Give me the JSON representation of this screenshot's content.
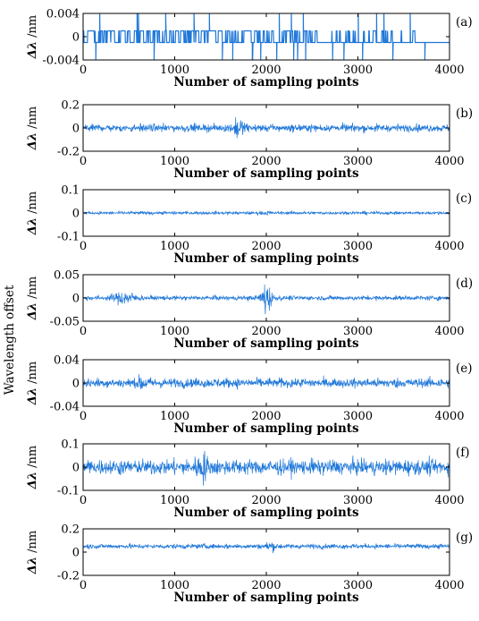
{
  "figure": {
    "y_title": "Wavelength offset"
  },
  "chart_data": [
    {
      "type": "line",
      "panel_label": "(a)",
      "ylabel_symbol": "Δλ",
      "ylabel_unit": " /nm",
      "xlabel": "Number of sampling points",
      "xlim": [
        0,
        4000
      ],
      "ylim": [
        -0.004,
        0.004
      ],
      "xticks": [
        0,
        1000,
        2000,
        3000,
        4000
      ],
      "yticks": [
        -0.004,
        0,
        0.004
      ],
      "xtick_labels": [
        "0",
        "1000",
        "2000",
        "3000",
        "4000"
      ],
      "ytick_labels": [
        "-0.004",
        "0",
        "0.004"
      ],
      "series": [
        {
          "color": "#1f77d8",
          "pattern": "binary",
          "levels": [
            0.001,
            -0.001
          ],
          "approx_amplitude": 0.004
        }
      ]
    },
    {
      "type": "line",
      "panel_label": "(b)",
      "ylabel_symbol": "Δλ",
      "ylabel_unit": " /nm",
      "xlabel": "Number of sampling points",
      "xlim": [
        0,
        4000
      ],
      "ylim": [
        -0.2,
        0.2
      ],
      "xticks": [
        0,
        1000,
        2000,
        3000,
        4000
      ],
      "yticks": [
        -0.2,
        0,
        0.2
      ],
      "xtick_labels": [
        "0",
        "1000",
        "2000",
        "3000",
        "4000"
      ],
      "ytick_labels": [
        "-0.2",
        "0",
        "0.2"
      ],
      "series": [
        {
          "color": "#1f77d8",
          "pattern": "noise",
          "approx_amplitude": 0.04,
          "burst_center": 1700,
          "burst_amplitude": 0.12
        }
      ]
    },
    {
      "type": "line",
      "panel_label": "(c)",
      "ylabel_symbol": "Δλ",
      "ylabel_unit": " /nm",
      "xlabel": "Number of sampling points",
      "xlim": [
        0,
        4000
      ],
      "ylim": [
        -0.1,
        0.1
      ],
      "xticks": [
        0,
        1000,
        2000,
        3000,
        4000
      ],
      "yticks": [
        -0.1,
        0,
        0.1
      ],
      "xtick_labels": [
        "0",
        "1000",
        "2000",
        "3000",
        "4000"
      ],
      "ytick_labels": [
        "-0.1",
        "0",
        "0.1"
      ],
      "series": [
        {
          "color": "#1f77d8",
          "pattern": "noise",
          "approx_amplitude": 0.008,
          "burst_center": 2000,
          "burst_amplitude": 0.012
        }
      ]
    },
    {
      "type": "line",
      "panel_label": "(d)",
      "ylabel_symbol": "Δλ",
      "ylabel_unit": " /nm",
      "xlabel": "Number of sampling points",
      "xlim": [
        0,
        4000
      ],
      "ylim": [
        -0.05,
        0.05
      ],
      "xticks": [
        0,
        1000,
        2000,
        3000,
        4000
      ],
      "yticks": [
        -0.05,
        0,
        0.05
      ],
      "xtick_labels": [
        "0",
        "1000",
        "2000",
        "3000",
        "4000"
      ],
      "ytick_labels": [
        "-0.05",
        "0",
        "0.05"
      ],
      "series": [
        {
          "color": "#1f77d8",
          "pattern": "noise",
          "approx_amplitude": 0.006,
          "burst_center": 2000,
          "burst_amplitude": 0.045,
          "burst2_center": 450,
          "burst2_amplitude": 0.02
        }
      ]
    },
    {
      "type": "line",
      "panel_label": "(e)",
      "ylabel_symbol": "Δλ",
      "ylabel_unit": " /nm",
      "xlabel": "Number of sampling points",
      "xlim": [
        0,
        4000
      ],
      "ylim": [
        -0.04,
        0.04
      ],
      "xticks": [
        0,
        1000,
        2000,
        3000,
        4000
      ],
      "yticks": [
        -0.04,
        0,
        0.04
      ],
      "xtick_labels": [
        "0",
        "1000",
        "2000",
        "3000",
        "4000"
      ],
      "ytick_labels": [
        "-0.04",
        "0",
        "0.04"
      ],
      "series": [
        {
          "color": "#1f77d8",
          "pattern": "noise",
          "approx_amplitude": 0.01,
          "burst_center": 650,
          "burst_amplitude": 0.018
        }
      ]
    },
    {
      "type": "line",
      "panel_label": "(f)",
      "ylabel_symbol": "Δλ",
      "ylabel_unit": " /nm",
      "xlabel": "Number of sampling points",
      "xlim": [
        0,
        4000
      ],
      "ylim": [
        -0.1,
        0.1
      ],
      "xticks": [
        0,
        1000,
        2000,
        3000,
        4000
      ],
      "yticks": [
        -0.1,
        0,
        0.1
      ],
      "xtick_labels": [
        "0",
        "1000",
        "2000",
        "3000",
        "4000"
      ],
      "ytick_labels": [
        "-0.1",
        "0",
        "0.1"
      ],
      "series": [
        {
          "color": "#1f77d8",
          "pattern": "noise",
          "approx_amplitude": 0.04,
          "burst_center": 1300,
          "burst_amplitude": 0.09
        }
      ]
    },
    {
      "type": "line",
      "panel_label": "(g)",
      "ylabel_symbol": "Δλ",
      "ylabel_unit": " /nm",
      "xlabel": "Number of sampling points",
      "xlim": [
        0,
        4000
      ],
      "ylim": [
        -0.2,
        0.2
      ],
      "xticks": [
        0,
        1000,
        2000,
        3000,
        4000
      ],
      "yticks": [
        -0.2,
        0,
        0.2
      ],
      "xtick_labels": [
        "0",
        "1000",
        "2000",
        "3000",
        "4000"
      ],
      "ytick_labels": [
        "-0.2",
        "0",
        "0.2"
      ],
      "series": [
        {
          "color": "#1f77d8",
          "pattern": "noise",
          "offset": 0.05,
          "approx_amplitude": 0.025,
          "burst_center": 2050,
          "burst_amplitude": 0.06
        }
      ]
    }
  ]
}
